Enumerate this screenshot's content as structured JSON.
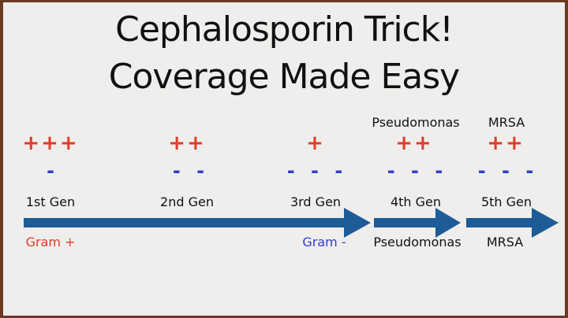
{
  "title": {
    "line1": "Cephalosporin Trick!",
    "line2": "Coverage Made Easy"
  },
  "colors": {
    "gram_positive": "#e43a2a",
    "gram_negative": "#2c3fd0",
    "arrow": "#1d5c96",
    "border": "#6b3a22"
  },
  "generations": [
    {
      "label": "1st Gen",
      "gram_pos": "+++",
      "gram_neg": "-",
      "top": ""
    },
    {
      "label": "2nd Gen",
      "gram_pos": "++",
      "gram_neg": "- -",
      "top": ""
    },
    {
      "label": "3rd Gen",
      "gram_pos": "+",
      "gram_neg": "- - -",
      "top": ""
    },
    {
      "label": "4th Gen",
      "gram_pos": "++",
      "gram_neg": "- - -",
      "top": "Pseudomonas"
    },
    {
      "label": "5th Gen",
      "gram_pos": "++",
      "gram_neg": "- - -",
      "top": "MRSA"
    }
  ],
  "bottom_labels": {
    "gram_pos": "Gram +",
    "gram_neg": "Gram -",
    "pseudomonas": "Pseudomonas",
    "mrsa": "MRSA"
  }
}
